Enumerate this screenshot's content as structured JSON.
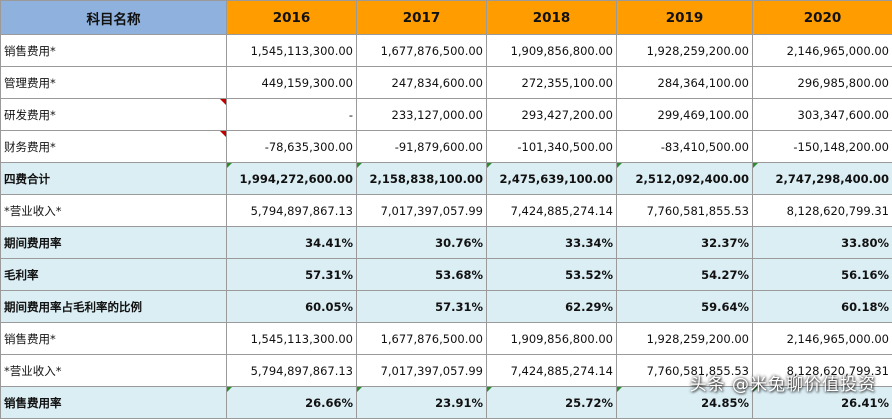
{
  "sheet": {
    "header": {
      "label": "科目名称",
      "years": [
        "2016",
        "2017",
        "2018",
        "2019",
        "2020"
      ]
    },
    "rows": [
      {
        "label": "销售费用*",
        "values": [
          "1,545,113,300.00",
          "1,677,876,500.00",
          "1,909,856,800.00",
          "1,928,259,200.00",
          "2,146,965,000.00"
        ]
      },
      {
        "label": "管理费用*",
        "values": [
          "449,159,300.00",
          "247,834,600.00",
          "272,355,100.00",
          "284,364,100.00",
          "296,985,800.00"
        ]
      },
      {
        "label": "研发费用*",
        "values": [
          "-",
          "233,127,000.00",
          "293,427,200.00",
          "299,469,100.00",
          "303,347,600.00"
        ]
      },
      {
        "label": "财务费用*",
        "values": [
          "-78,635,300.00",
          "-91,879,600.00",
          "-101,340,500.00",
          "-83,410,500.00",
          "-150,148,200.00"
        ]
      },
      {
        "label": "四费合计",
        "values": [
          "1,994,272,600.00",
          "2,158,838,100.00",
          "2,475,639,100.00",
          "2,512,092,400.00",
          "2,747,298,400.00"
        ]
      },
      {
        "label": "*营业收入*",
        "values": [
          "5,794,897,867.13",
          "7,017,397,057.99",
          "7,424,885,274.14",
          "7,760,581,855.53",
          "8,128,620,799.31"
        ]
      },
      {
        "label": "期间费用率",
        "values": [
          "34.41%",
          "30.76%",
          "33.34%",
          "32.37%",
          "33.80%"
        ]
      },
      {
        "label": "毛利率",
        "values": [
          "57.31%",
          "53.68%",
          "53.52%",
          "54.27%",
          "56.16%"
        ]
      },
      {
        "label": "期间费用率占毛利率的比例",
        "values": [
          "60.05%",
          "57.31%",
          "62.29%",
          "59.64%",
          "60.18%"
        ]
      },
      {
        "label": "销售费用*",
        "values": [
          "1,545,113,300.00",
          "1,677,876,500.00",
          "1,909,856,800.00",
          "1,928,259,200.00",
          "2,146,965,000.00"
        ]
      },
      {
        "label": "*营业收入*",
        "values": [
          "5,794,897,867.13",
          "7,017,397,057.99",
          "7,424,885,274.14",
          "7,760,581,855.53",
          "8,128,620,799.31"
        ]
      },
      {
        "label": "销售费用率",
        "values": [
          "26.66%",
          "23.91%",
          "25.72%",
          "24.85%",
          "26.41%"
        ]
      }
    ]
  },
  "watermark": "头条 @米兔聊价值投资",
  "colors": {
    "header_label_bg": "#8fb1de",
    "header_year_bg": "#ff9c00",
    "highlight_row_bg": "#dbeef4",
    "comment_marker": "#c00000",
    "error_marker": "#2e8b2e"
  }
}
